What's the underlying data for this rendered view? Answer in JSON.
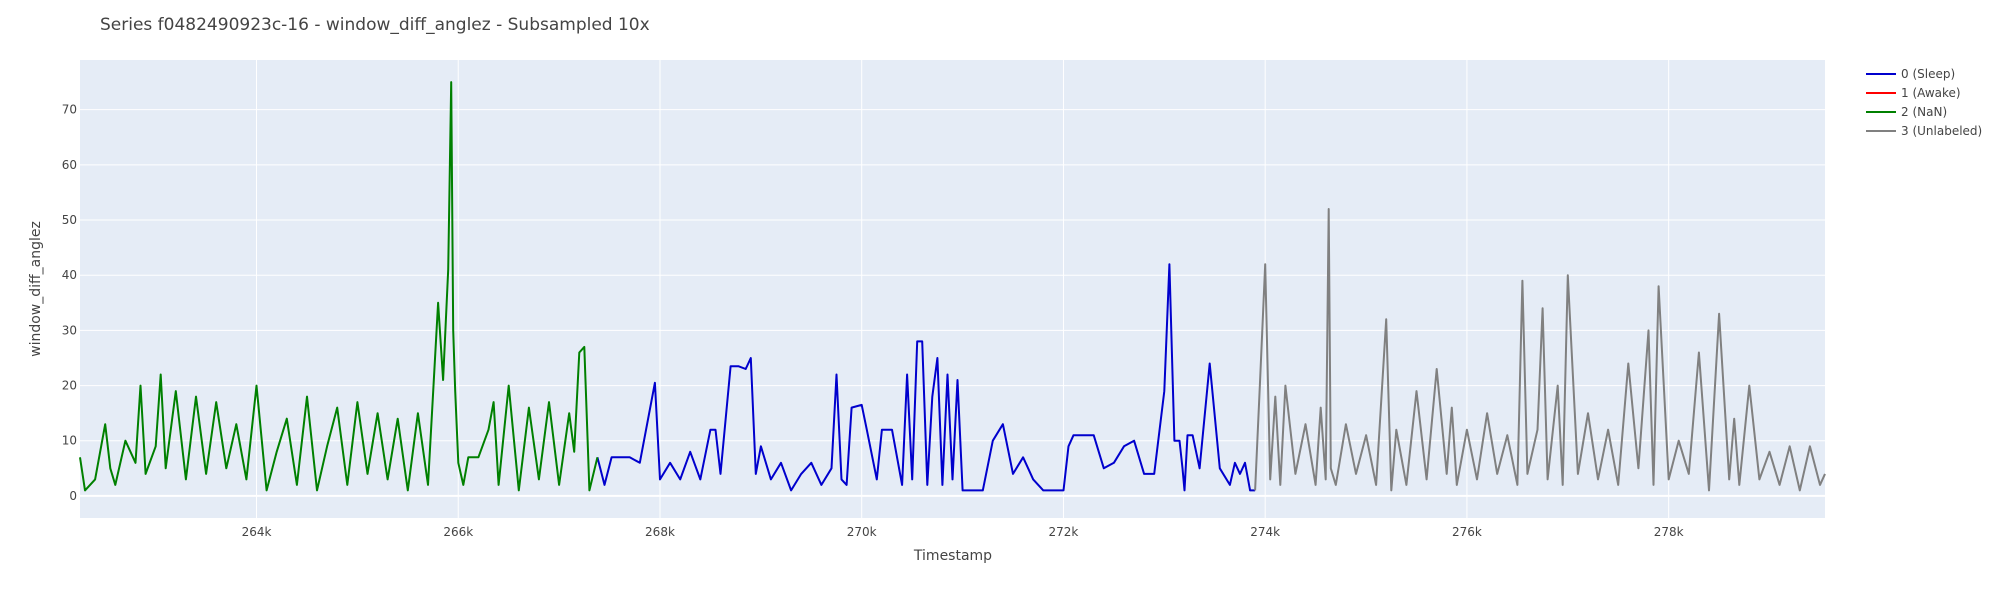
{
  "chart_data": {
    "type": "line",
    "title": "Series f0482490923c-16 - window_diff_anglez - Subsampled 10x",
    "xlabel": "Timestamp",
    "ylabel": "window_diff_anglez",
    "xlim": [
      262250,
      279550
    ],
    "ylim": [
      -4,
      79
    ],
    "x_ticks": [
      264000,
      266000,
      268000,
      270000,
      272000,
      274000,
      276000,
      278000
    ],
    "x_tick_labels": [
      "264k",
      "266k",
      "268k",
      "270k",
      "272k",
      "274k",
      "276k",
      "278k"
    ],
    "y_ticks": [
      0,
      10,
      20,
      30,
      40,
      50,
      60,
      70
    ],
    "y_tick_labels": [
      "0",
      "10",
      "20",
      "30",
      "40",
      "50",
      "60",
      "70"
    ],
    "grid": true,
    "legend_position": "top-right",
    "series": [
      {
        "name": "0 (Sleep)",
        "color": "#0000cd",
        "x": [
          267380,
          267450,
          267520,
          267600,
          267700,
          267800,
          267950,
          268000,
          268100,
          268200,
          268300,
          268400,
          268500,
          268550,
          268600,
          268700,
          268780,
          268850,
          268900,
          268950,
          269000,
          269100,
          269200,
          269300,
          269400,
          269500,
          269600,
          269700,
          269750,
          269800,
          269850,
          269900,
          270000,
          270050,
          270150,
          270200,
          270300,
          270400,
          270450,
          270500,
          270550,
          270600,
          270650,
          270700,
          270750,
          270800,
          270850,
          270900,
          270950,
          271000,
          271100,
          271150,
          271200,
          271300,
          271400,
          271500,
          271600,
          271700,
          271800,
          271900,
          272000,
          272050,
          272100,
          272200,
          272300,
          272400,
          272500,
          272600,
          272700,
          272800,
          272900,
          273000,
          273050,
          273100,
          273150,
          273180,
          273200,
          273230,
          273280,
          273350,
          273450,
          273550,
          273650,
          273700,
          273750,
          273800,
          273850,
          273900
        ],
        "y": [
          7,
          2,
          7,
          7,
          7,
          6,
          20.5,
          3,
          6,
          3,
          8,
          3,
          12,
          12,
          4,
          23.5,
          23.5,
          23,
          25,
          4,
          9,
          3,
          6,
          1,
          4,
          6,
          2,
          5,
          22,
          3,
          2,
          16,
          16.5,
          12,
          3,
          12,
          12,
          2,
          22,
          3,
          28,
          28,
          2,
          18,
          25,
          2,
          22,
          3,
          21,
          1,
          1,
          1,
          1,
          10,
          13,
          4,
          7,
          3,
          1,
          1,
          1,
          9,
          11,
          11,
          11,
          5,
          6,
          9,
          10,
          4,
          4,
          19,
          42,
          10,
          10,
          5,
          1,
          11,
          11,
          5,
          24,
          5,
          2,
          6,
          4,
          6,
          1,
          1
        ]
      },
      {
        "name": "1 (Awake)",
        "color": "#ff0000",
        "x": [],
        "y": []
      },
      {
        "name": "2 (NaN)",
        "color": "#008000",
        "x": [
          262250,
          262300,
          262400,
          262500,
          262550,
          262600,
          262700,
          262800,
          262850,
          262900,
          263000,
          263050,
          263100,
          263200,
          263300,
          263400,
          263500,
          263600,
          263700,
          263800,
          263900,
          264000,
          264100,
          264200,
          264300,
          264400,
          264500,
          264600,
          264700,
          264800,
          264900,
          265000,
          265100,
          265200,
          265300,
          265400,
          265500,
          265600,
          265700,
          265800,
          265850,
          265900,
          265930,
          265950,
          265970,
          266000,
          266050,
          266100,
          266200,
          266300,
          266350,
          266400,
          266500,
          266600,
          266700,
          266800,
          266900,
          267000,
          267100,
          267150,
          267200,
          267250,
          267300,
          267380
        ],
        "y": [
          7,
          1,
          3,
          13,
          5,
          2,
          10,
          6,
          20,
          4,
          9,
          22,
          5,
          19,
          3,
          18,
          4,
          17,
          5,
          13,
          3,
          20,
          1,
          8,
          14,
          2,
          18,
          1,
          9,
          16,
          2,
          17,
          4,
          15,
          3,
          14,
          1,
          15,
          2,
          35,
          21,
          41,
          75,
          30,
          19,
          6,
          2,
          7,
          7,
          12,
          17,
          2,
          20,
          1,
          16,
          3,
          17,
          2,
          15,
          8,
          26,
          27,
          1,
          7
        ]
      },
      {
        "name": "3 (Unlabeled)",
        "color": "#808080",
        "x": [
          273900,
          273950,
          274000,
          274050,
          274100,
          274150,
          274200,
          274300,
          274400,
          274500,
          274550,
          274600,
          274630,
          274650,
          274700,
          274800,
          274900,
          275000,
          275100,
          275200,
          275250,
          275300,
          275400,
          275500,
          275600,
          275700,
          275800,
          275850,
          275900,
          276000,
          276100,
          276200,
          276300,
          276400,
          276500,
          276550,
          276600,
          276700,
          276750,
          276800,
          276900,
          276950,
          277000,
          277100,
          277200,
          277300,
          277400,
          277500,
          277600,
          277700,
          277800,
          277850,
          277900,
          278000,
          278100,
          278200,
          278300,
          278400,
          278500,
          278600,
          278650,
          278700,
          278800,
          278900,
          279000,
          279100,
          279200,
          279300,
          279400,
          279500,
          279550
        ],
        "y": [
          1,
          21,
          42,
          3,
          18,
          2,
          20,
          4,
          13,
          2,
          16,
          3,
          52,
          5,
          2,
          13,
          4,
          11,
          2,
          32,
          1,
          12,
          2,
          19,
          3,
          23,
          4,
          16,
          2,
          12,
          3,
          15,
          4,
          11,
          2,
          39,
          4,
          12,
          34,
          3,
          20,
          2,
          40,
          4,
          15,
          3,
          12,
          2,
          24,
          5,
          30,
          2,
          38,
          3,
          10,
          4,
          26,
          1,
          33,
          3,
          14,
          2,
          20,
          3,
          8,
          2,
          9,
          1,
          9,
          2,
          4
        ]
      }
    ]
  }
}
